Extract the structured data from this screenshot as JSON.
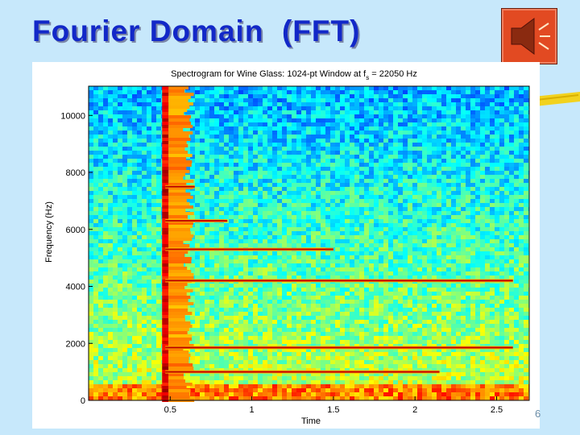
{
  "slide": {
    "title": "Fourier Domain  (FFT)",
    "page_number": "6",
    "colors": {
      "background": "#c7e8fb",
      "title": "#1228c8",
      "sound_button": "#e24a22",
      "deco_bar": "#f2d21e"
    },
    "icons": [
      "speaker-icon"
    ]
  },
  "chart_data": {
    "type": "heatmap",
    "title": "Spectrogram for Wine Glass: 1024-pt Window at f",
    "title_subscript": "s",
    "title_suffix": " = 22050 Hz",
    "xlabel": "Time",
    "ylabel": "Frequency (Hz)",
    "xlim": [
      0,
      2.7
    ],
    "ylim": [
      0,
      11025
    ],
    "x_ticks": [
      0.5,
      1,
      1.5,
      2,
      2.5
    ],
    "x_tick_labels": [
      "0.5",
      "1",
      "1.5",
      "2",
      "2.5"
    ],
    "y_ticks": [
      0,
      2000,
      4000,
      6000,
      8000,
      10000
    ],
    "y_tick_labels": [
      "0",
      "2000",
      "4000",
      "6000",
      "8000",
      "10000"
    ],
    "colormap": "jet",
    "onset_time": 0.47,
    "harmonics": [
      {
        "frequency": 1000,
        "end_time": 2.15
      },
      {
        "frequency": 1850,
        "end_time": 2.6
      },
      {
        "frequency": 4200,
        "end_time": 2.6
      },
      {
        "frequency": 5300,
        "end_time": 1.5
      },
      {
        "frequency": 6300,
        "end_time": 0.85
      },
      {
        "frequency": 7500,
        "end_time": 0.65
      }
    ]
  }
}
